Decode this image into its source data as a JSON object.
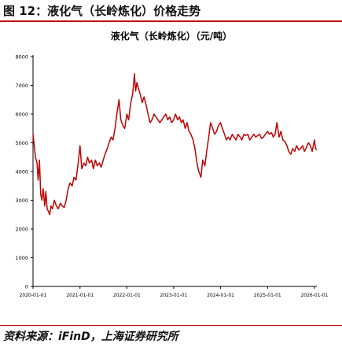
{
  "figure_title": "图 12：液化气（长岭炼化）价格走势",
  "source_note": "资料来源：iFinD，上海证券研究所",
  "colors": {
    "series": "#c00000",
    "rule": "#c00000",
    "axis": "#000000"
  },
  "chart_data": {
    "type": "line",
    "title": "液化气（长岭炼化）（元/吨）",
    "xlabel": "",
    "ylabel": "",
    "x_range": [
      "2020-01-01",
      "2026-01-20"
    ],
    "ylim": [
      0,
      8000
    ],
    "y_ticks": [
      0,
      1000,
      2000,
      3000,
      4000,
      5000,
      6000,
      7000,
      8000
    ],
    "x_tick_labels": [
      "2020-01-01",
      "2021-01-01",
      "2022-01-01",
      "2023-01-01",
      "2024-01-01",
      "2025-01-01",
      "2026-01-01"
    ],
    "grid": false,
    "legend": "none",
    "series": [
      {
        "x": [
          "2020-01-01",
          "2020-01-10",
          "2020-01-20",
          "2020-02-01",
          "2020-02-10",
          "2020-02-20",
          "2020-03-01",
          "2020-03-10",
          "2020-03-20",
          "2020-04-01",
          "2020-04-10",
          "2020-04-20",
          "2020-05-01",
          "2020-05-10",
          "2020-05-20",
          "2020-06-01",
          "2020-06-15",
          "2020-07-01",
          "2020-07-15",
          "2020-08-01",
          "2020-08-15",
          "2020-09-01",
          "2020-09-15",
          "2020-10-01",
          "2020-10-15",
          "2020-11-01",
          "2020-11-15",
          "2020-12-01",
          "2020-12-15",
          "2021-01-01",
          "2021-01-15",
          "2021-02-01",
          "2021-02-15",
          "2021-03-01",
          "2021-03-15",
          "2021-04-01",
          "2021-04-15",
          "2021-05-01",
          "2021-05-15",
          "2021-06-01",
          "2021-06-15",
          "2021-07-01",
          "2021-07-15",
          "2021-08-01",
          "2021-08-15",
          "2021-09-01",
          "2021-09-15",
          "2021-10-01",
          "2021-10-15",
          "2021-11-01",
          "2021-11-15",
          "2021-12-01",
          "2021-12-15",
          "2022-01-01",
          "2022-01-15",
          "2022-02-01",
          "2022-02-15",
          "2022-03-01",
          "2022-03-10",
          "2022-03-20",
          "2022-04-01",
          "2022-04-15",
          "2022-05-01",
          "2022-05-15",
          "2022-06-01",
          "2022-06-15",
          "2022-07-01",
          "2022-07-15",
          "2022-08-01",
          "2022-08-15",
          "2022-09-01",
          "2022-09-15",
          "2022-10-01",
          "2022-10-15",
          "2022-11-01",
          "2022-11-15",
          "2022-12-01",
          "2022-12-15",
          "2023-01-01",
          "2023-01-15",
          "2023-02-01",
          "2023-02-15",
          "2023-03-01",
          "2023-03-15",
          "2023-04-01",
          "2023-04-15",
          "2023-05-01",
          "2023-05-15",
          "2023-06-01",
          "2023-06-15",
          "2023-07-01",
          "2023-07-15",
          "2023-08-01",
          "2023-08-15",
          "2023-09-01",
          "2023-09-15",
          "2023-10-01",
          "2023-10-15",
          "2023-11-01",
          "2023-11-15",
          "2023-12-01",
          "2023-12-15",
          "2024-01-01",
          "2024-01-15",
          "2024-02-01",
          "2024-02-15",
          "2024-03-01",
          "2024-03-15",
          "2024-04-01",
          "2024-04-15",
          "2024-05-01",
          "2024-05-15",
          "2024-06-01",
          "2024-06-15",
          "2024-07-01",
          "2024-07-15",
          "2024-08-01",
          "2024-08-15",
          "2024-09-01",
          "2024-09-15",
          "2024-10-01",
          "2024-10-15",
          "2024-11-01",
          "2024-11-15",
          "2024-12-01",
          "2024-12-15",
          "2025-01-01",
          "2025-01-15",
          "2025-02-01",
          "2025-02-15",
          "2025-03-01",
          "2025-03-15",
          "2025-04-01",
          "2025-04-15",
          "2025-05-01",
          "2025-05-15",
          "2025-06-01",
          "2025-06-15",
          "2025-07-01",
          "2025-07-15",
          "2025-08-01",
          "2025-08-15",
          "2025-09-01",
          "2025-09-15",
          "2025-10-01",
          "2025-10-15",
          "2025-11-01",
          "2025-11-15",
          "2025-12-01",
          "2025-12-15",
          "2026-01-01",
          "2026-01-10",
          "2026-01-20"
        ],
        "values": [
          5300,
          4900,
          4500,
          4300,
          3700,
          4400,
          3200,
          3000,
          3400,
          2800,
          3300,
          2700,
          2600,
          2500,
          2800,
          2700,
          3000,
          2800,
          2700,
          2900,
          2800,
          2750,
          3000,
          3400,
          3600,
          3500,
          3800,
          3700,
          4200,
          4900,
          4100,
          4300,
          4200,
          4500,
          4300,
          4400,
          4100,
          4400,
          4200,
          4300,
          4150,
          4400,
          4600,
          4800,
          5000,
          5200,
          5100,
          5500,
          6000,
          6500,
          5800,
          5600,
          5500,
          6000,
          5800,
          6400,
          6700,
          7400,
          6800,
          7100,
          6900,
          6700,
          6400,
          6600,
          6300,
          6000,
          5700,
          5800,
          6000,
          5900,
          5800,
          5700,
          5800,
          5900,
          6000,
          5800,
          5900,
          5700,
          5800,
          6000,
          5800,
          5900,
          5700,
          5800,
          5500,
          5700,
          5400,
          5300,
          5100,
          4800,
          4300,
          4000,
          3800,
          4400,
          4200,
          4700,
          5200,
          5700,
          5500,
          5300,
          5400,
          5600,
          5700,
          5500,
          5300,
          5100,
          5200,
          5100,
          5300,
          5200,
          5100,
          5300,
          5200,
          5100,
          5300,
          5250,
          5300,
          5100,
          5200,
          5300,
          5200,
          5250,
          5300,
          5150,
          5200,
          5300,
          5400,
          5300,
          5350,
          5200,
          5300,
          5700,
          5200,
          5400,
          5100,
          5050,
          4900,
          4700,
          4600,
          4800,
          4700,
          4900,
          4750,
          4800,
          4900,
          4700,
          4850,
          5000,
          4900,
          4700,
          5100,
          4800,
          4750
        ]
      }
    ]
  }
}
